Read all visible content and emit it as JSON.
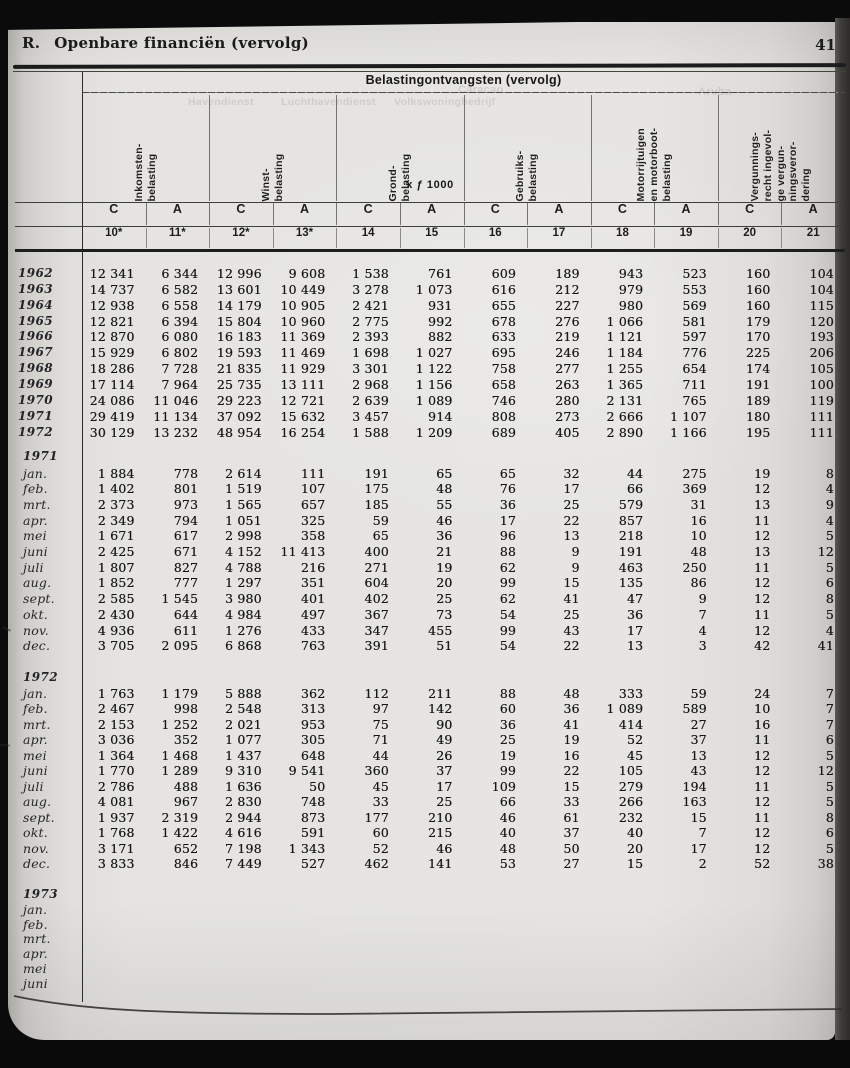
{
  "header": {
    "section_label": "R.",
    "title": "Openbare financiën (vervolg)",
    "page_number": "41"
  },
  "table": {
    "title": "Belastingontvangsten (vervolg)",
    "unit": "x ƒ 1000",
    "column_groups": [
      {
        "id": "inkomstenbelasting",
        "lines": [
          "Inkomsten-",
          "belasting"
        ]
      },
      {
        "id": "winstbelasting",
        "lines": [
          "Winst-",
          "belasting"
        ]
      },
      {
        "id": "grondbelasting",
        "lines": [
          "Grond-",
          "belasting"
        ]
      },
      {
        "id": "gebruiksbelasting",
        "lines": [
          "Gebruiks-",
          "belasting"
        ]
      },
      {
        "id": "motorrijtuigen-en-motorbootbelasting",
        "lines": [
          "Motorrijtuigen",
          "en motorboot-",
          "belasting"
        ]
      },
      {
        "id": "vergunningsrecht",
        "lines": [
          "Vergunnings-",
          "recht ingevol-",
          "ge vergun-",
          "ningsveror-",
          "dering"
        ]
      }
    ],
    "type_row": [
      "C",
      "A",
      "C",
      "A",
      "C",
      "A",
      "C",
      "A",
      "C",
      "A",
      "C",
      "A"
    ],
    "number_row": [
      "10*",
      "11*",
      "12*",
      "13*",
      "14",
      "15",
      "16",
      "17",
      "18",
      "19",
      "20",
      "21"
    ],
    "sections": [
      {
        "kind": "years",
        "rows": [
          {
            "label": "1962",
            "values": [
              "12 341",
              "6 344",
              "12 996",
              "9 608",
              "1 538",
              "761",
              "609",
              "189",
              "943",
              "523",
              "160",
              "104"
            ]
          },
          {
            "label": "1963",
            "values": [
              "14 737",
              "6 582",
              "13 601",
              "10 449",
              "3 278",
              "1 073",
              "616",
              "212",
              "979",
              "553",
              "160",
              "104"
            ]
          },
          {
            "label": "1964",
            "values": [
              "12 938",
              "6 558",
              "14 179",
              "10 905",
              "2 421",
              "931",
              "655",
              "227",
              "980",
              "569",
              "160",
              "115"
            ]
          },
          {
            "label": "1965",
            "values": [
              "12 821",
              "6 394",
              "15 804",
              "10 960",
              "2 775",
              "992",
              "678",
              "276",
              "1 066",
              "581",
              "179",
              "120"
            ]
          },
          {
            "label": "1966",
            "values": [
              "12 870",
              "6 080",
              "16 183",
              "11 369",
              "2 393",
              "882",
              "633",
              "219",
              "1 121",
              "597",
              "170",
              "193"
            ]
          },
          {
            "label": "1967",
            "values": [
              "15 929",
              "6 802",
              "19 593",
              "11 469",
              "1 698",
              "1 027",
              "695",
              "246",
              "1 184",
              "776",
              "225",
              "206"
            ]
          },
          {
            "label": "1968",
            "values": [
              "18 286",
              "7 728",
              "21 835",
              "11 929",
              "3 301",
              "1 122",
              "758",
              "277",
              "1 255",
              "654",
              "174",
              "105"
            ]
          },
          {
            "label": "1969",
            "values": [
              "17 114",
              "7 964",
              "25 735",
              "13 111",
              "2 968",
              "1 156",
              "658",
              "263",
              "1 365",
              "711",
              "191",
              "100"
            ]
          },
          {
            "label": "1970",
            "values": [
              "24 086",
              "11 046",
              "29 223",
              "12 721",
              "2 639",
              "1 089",
              "746",
              "280",
              "2 131",
              "765",
              "189",
              "119"
            ]
          },
          {
            "label": "1971",
            "values": [
              "29 419",
              "11 134",
              "37 092",
              "15 632",
              "3 457",
              "914",
              "808",
              "273",
              "2 666",
              "1 107",
              "180",
              "111"
            ]
          },
          {
            "label": "1972",
            "values": [
              "30 129",
              "13 232",
              "48 954",
              "16 254",
              "1 588",
              "1 209",
              "689",
              "405",
              "2 890",
              "1 166",
              "195",
              "111"
            ]
          }
        ]
      },
      {
        "kind": "months",
        "year": "1971",
        "rows": [
          {
            "label": "jan.",
            "values": [
              "1 884",
              "778",
              "2 614",
              "111",
              "191",
              "65",
              "65",
              "32",
              "44",
              "275",
              "19",
              "8"
            ]
          },
          {
            "label": "feb.",
            "values": [
              "1 402",
              "801",
              "1 519",
              "107",
              "175",
              "48",
              "76",
              "17",
              "66",
              "369",
              "12",
              "4"
            ]
          },
          {
            "label": "mrt.",
            "values": [
              "2 373",
              "973",
              "1 565",
              "657",
              "185",
              "55",
              "36",
              "25",
              "579",
              "31",
              "13",
              "9"
            ]
          },
          {
            "label": "apr.",
            "values": [
              "2 349",
              "794",
              "1 051",
              "325",
              "59",
              "46",
              "17",
              "22",
              "857",
              "16",
              "11",
              "4"
            ]
          },
          {
            "label": "mei",
            "values": [
              "1 671",
              "617",
              "2 998",
              "358",
              "65",
              "36",
              "96",
              "13",
              "218",
              "10",
              "12",
              "5"
            ]
          },
          {
            "label": "juni",
            "values": [
              "2 425",
              "671",
              "4 152",
              "11 413",
              "400",
              "21",
              "88",
              "9",
              "191",
              "48",
              "13",
              "12"
            ]
          },
          {
            "label": "juli",
            "values": [
              "1 807",
              "827",
              "4 788",
              "216",
              "271",
              "19",
              "62",
              "9",
              "463",
              "250",
              "11",
              "5"
            ]
          },
          {
            "label": "aug.",
            "values": [
              "1 852",
              "777",
              "1 297",
              "351",
              "604",
              "20",
              "99",
              "15",
              "135",
              "86",
              "12",
              "6"
            ]
          },
          {
            "label": "sept.",
            "values": [
              "2 585",
              "1 545",
              "3 980",
              "401",
              "402",
              "25",
              "62",
              "41",
              "47",
              "9",
              "12",
              "8"
            ]
          },
          {
            "label": "okt.",
            "values": [
              "2 430",
              "644",
              "4 984",
              "497",
              "367",
              "73",
              "54",
              "25",
              "36",
              "7",
              "11",
              "5"
            ]
          },
          {
            "label": "nov.",
            "values": [
              "4 936",
              "611",
              "1 276",
              "433",
              "347",
              "455",
              "99",
              "43",
              "17",
              "4",
              "12",
              "4"
            ]
          },
          {
            "label": "dec.",
            "values": [
              "3 705",
              "2 095",
              "6 868",
              "763",
              "391",
              "51",
              "54",
              "22",
              "13",
              "3",
              "42",
              "41"
            ]
          }
        ]
      },
      {
        "kind": "months",
        "year": "1972",
        "rows": [
          {
            "label": "jan.",
            "values": [
              "1 763",
              "1 179",
              "5 888",
              "362",
              "112",
              "211",
              "88",
              "48",
              "333",
              "59",
              "24",
              "7"
            ]
          },
          {
            "label": "feb.",
            "values": [
              "2 467",
              "998",
              "2 548",
              "313",
              "97",
              "142",
              "60",
              "36",
              "1 089",
              "589",
              "10",
              "7"
            ]
          },
          {
            "label": "mrt.",
            "values": [
              "2 153",
              "1 252",
              "2 021",
              "953",
              "75",
              "90",
              "36",
              "41",
              "414",
              "27",
              "16",
              "7"
            ]
          },
          {
            "label": "apr.",
            "values": [
              "3 036",
              "352",
              "1 077",
              "305",
              "71",
              "49",
              "25",
              "19",
              "52",
              "37",
              "11",
              "6"
            ]
          },
          {
            "label": "mei",
            "values": [
              "1 364",
              "1 468",
              "1 437",
              "648",
              "44",
              "26",
              "19",
              "16",
              "45",
              "13",
              "12",
              "5"
            ]
          },
          {
            "label": "juni",
            "values": [
              "1 770",
              "1 289",
              "9 310",
              "9 541",
              "360",
              "37",
              "99",
              "22",
              "105",
              "43",
              "12",
              "12"
            ]
          },
          {
            "label": "juli",
            "values": [
              "2 786",
              "488",
              "1 636",
              "50",
              "45",
              "17",
              "109",
              "15",
              "279",
              "194",
              "11",
              "5"
            ]
          },
          {
            "label": "aug.",
            "values": [
              "4 081",
              "967",
              "2 830",
              "748",
              "33",
              "25",
              "66",
              "33",
              "266",
              "163",
              "12",
              "5"
            ]
          },
          {
            "label": "sept.",
            "values": [
              "1 937",
              "2 319",
              "2 944",
              "873",
              "177",
              "210",
              "46",
              "61",
              "232",
              "15",
              "11",
              "8"
            ]
          },
          {
            "label": "okt.",
            "values": [
              "1 768",
              "1 422",
              "4 616",
              "591",
              "60",
              "215",
              "40",
              "37",
              "40",
              "7",
              "12",
              "6"
            ]
          },
          {
            "label": "nov.",
            "values": [
              "3 171",
              "652",
              "7 198",
              "1 343",
              "52",
              "46",
              "48",
              "50",
              "20",
              "17",
              "12",
              "5"
            ]
          },
          {
            "label": "dec.",
            "values": [
              "3 833",
              "846",
              "7 449",
              "527",
              "462",
              "141",
              "53",
              "27",
              "15",
              "2",
              "52",
              "38"
            ]
          }
        ]
      },
      {
        "kind": "months",
        "year": "1973",
        "rows": [
          {
            "label": "jan.",
            "values": []
          },
          {
            "label": "feb.",
            "values": []
          },
          {
            "label": "mrt.",
            "values": []
          },
          {
            "label": "apr.",
            "values": []
          },
          {
            "label": "mei",
            "values": []
          },
          {
            "label": "juni",
            "values": []
          }
        ]
      }
    ]
  },
  "scan": {
    "bleed_through": {
      "region_left": "Caracao",
      "region_right": "Aruba",
      "words_top": [
        "Havendienst",
        "Luchthavendienst",
        "Volkswoningbedrijf"
      ]
    }
  }
}
